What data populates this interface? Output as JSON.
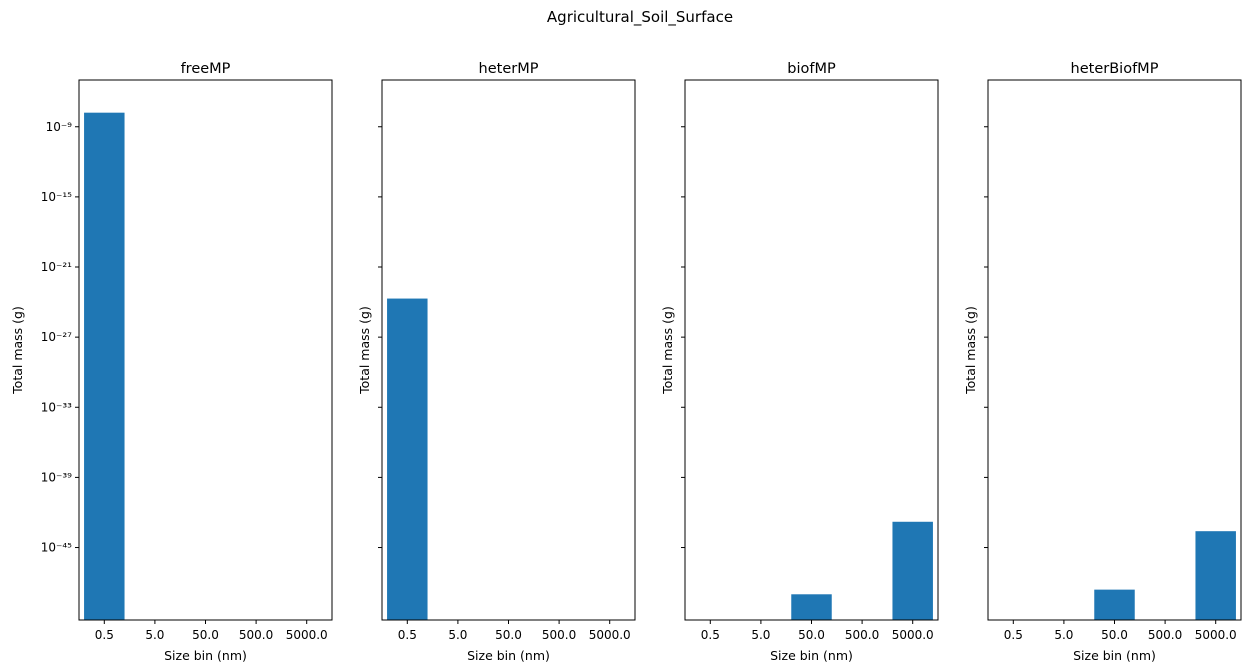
{
  "figure": {
    "suptitle": "Agricultural_Soil_Surface"
  },
  "chart_data": [
    {
      "type": "bar",
      "title": "freeMP",
      "xlabel": "Size bin (nm)",
      "ylabel": "Total mass (g)",
      "categories": [
        "0.5",
        "5.0",
        "50.0",
        "500.0",
        "5000.0"
      ],
      "values": [
        1.6e-08,
        null,
        null,
        null,
        null
      ],
      "yscale": "log",
      "ylim_log10": [
        -51.2,
        -5.0
      ],
      "yticks_exp": [
        -9,
        -15,
        -21,
        -27,
        -33,
        -39,
        -45
      ],
      "yticks_label": [
        "10⁻⁹",
        "10⁻¹⁵",
        "10⁻²¹",
        "10⁻²⁷",
        "10⁻³³",
        "10⁻³⁹",
        "10⁻⁴⁵"
      ],
      "color": "#1f77b4",
      "show_ytick_labels": true
    },
    {
      "type": "bar",
      "title": "heterMP",
      "xlabel": "Size bin (nm)",
      "ylabel": "Total mass (g)",
      "categories": [
        "0.5",
        "5.0",
        "50.0",
        "500.0",
        "5000.0"
      ],
      "values": [
        2e-24,
        null,
        null,
        null,
        null
      ],
      "yscale": "log",
      "ylim_log10": [
        -51.2,
        -5.0
      ],
      "yticks_exp": [
        -9,
        -15,
        -21,
        -27,
        -33,
        -39,
        -45
      ],
      "color": "#1f77b4",
      "show_ytick_labels": false
    },
    {
      "type": "bar",
      "title": "biofMP",
      "xlabel": "Size bin (nm)",
      "ylabel": "Total mass (g)",
      "categories": [
        "0.5",
        "5.0",
        "50.0",
        "500.0",
        "5000.0"
      ],
      "values": [
        null,
        null,
        1e-49,
        null,
        1.6e-43
      ],
      "yscale": "log",
      "ylim_log10": [
        -51.2,
        -5.0
      ],
      "yticks_exp": [
        -9,
        -15,
        -21,
        -27,
        -33,
        -39,
        -45
      ],
      "color": "#1f77b4",
      "show_ytick_labels": false
    },
    {
      "type": "bar",
      "title": "heterBiofMP",
      "xlabel": "Size bin (nm)",
      "ylabel": "Total mass (g)",
      "categories": [
        "0.5",
        "5.0",
        "50.0",
        "500.0",
        "5000.0"
      ],
      "values": [
        null,
        null,
        2.5e-49,
        null,
        2.5e-44
      ],
      "yscale": "log",
      "ylim_log10": [
        -51.2,
        -5.0
      ],
      "yticks_exp": [
        -9,
        -15,
        -21,
        -27,
        -33,
        -39,
        -45
      ],
      "color": "#1f77b4",
      "show_ytick_labels": false
    }
  ]
}
